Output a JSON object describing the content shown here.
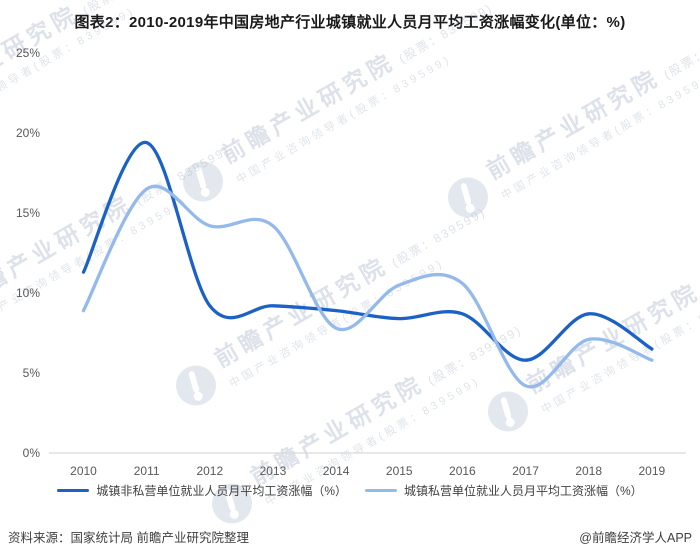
{
  "title": "图表2：2010-2019年中国房地产行业城镇就业人员月平均工资涨幅变化(单位：%)",
  "footer": {
    "source": "资料来源：国家统计局 前瞻产业研究院整理",
    "credit": "@前瞻经济学人APP"
  },
  "watermark": {
    "brand": "前瞻产业研究院",
    "stock": "(股票：839599)",
    "tagline": "中国产业咨询领导者(股票：839599)",
    "logo": "qianzhan-globe-logo"
  },
  "colors": {
    "non_private_line": "#1b61c6",
    "private_line": "#94b9eb",
    "axis_line": "#d9d9d9",
    "tick_text": "#595959",
    "legend_text": "#404040",
    "title_text": "#1a1a1a",
    "watermark": "#a9b7ca"
  },
  "chart_data": {
    "type": "line",
    "title": "图表2：2010-2019年中国房地产行业城镇就业人员月平均工资涨幅变化(单位：%)",
    "categories": [
      "2010",
      "2011",
      "2012",
      "2013",
      "2014",
      "2015",
      "2016",
      "2017",
      "2018",
      "2019"
    ],
    "series": [
      {
        "name": "城镇非私营单位就业人员月平均工资涨幅（%）",
        "color": "#1b61c6",
        "values": [
          11.3,
          19.4,
          9.2,
          9.2,
          8.9,
          8.4,
          8.7,
          5.8,
          8.7,
          6.5
        ]
      },
      {
        "name": "城镇私营单位就业人员月平均工资涨幅（%）",
        "color": "#94b9eb",
        "values": [
          8.9,
          16.5,
          14.2,
          14.2,
          7.8,
          10.5,
          10.6,
          4.2,
          7.1,
          5.8
        ]
      }
    ],
    "xlabel": "",
    "ylabel": "",
    "ylim": [
      0,
      25
    ],
    "ytick_step": 5,
    "ytick_labels": [
      "0%",
      "5%",
      "10%",
      "15%",
      "20%",
      "25%"
    ],
    "grid": false,
    "smooth": true,
    "legend_position": "bottom"
  }
}
